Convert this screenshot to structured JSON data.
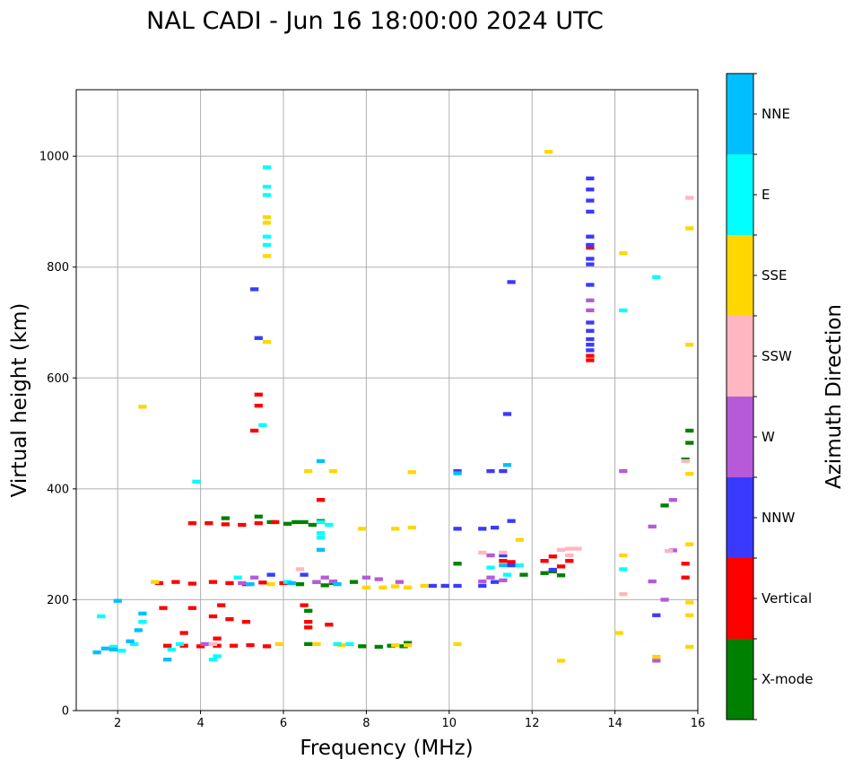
{
  "chart_data": {
    "type": "scatter",
    "title": "NAL CADI - Jun 16 18:00:00 2024 UTC",
    "xlabel": "Frequency (MHz)",
    "ylabel": "Virtual height (km)",
    "xlim": [
      1,
      16
    ],
    "ylim": [
      0,
      1120
    ],
    "xticks": [
      2,
      4,
      6,
      8,
      10,
      12,
      14,
      16
    ],
    "yticks": [
      0,
      200,
      400,
      600,
      800,
      1000
    ],
    "grid": true,
    "colorbar": {
      "label": "Azimuth Direction",
      "categories": [
        "X-mode",
        "Vertical",
        "NNW",
        "W",
        "SSW",
        "SSE",
        "E",
        "NNE"
      ],
      "colors": [
        "#008000",
        "#ff0000",
        "#3a3aff",
        "#b65ad9",
        "#ffb6c1",
        "#ffd700",
        "#00ffff",
        "#00bfff"
      ]
    },
    "echo_width_mhz": 0.2,
    "echo_height_km": 7,
    "series": [
      {
        "name": "X-mode",
        "points": [
          [
            6.3,
            340
          ],
          [
            6.5,
            340
          ],
          [
            6.7,
            335
          ],
          [
            6.9,
            342
          ],
          [
            5.7,
            340
          ],
          [
            6.1,
            337
          ],
          [
            6.8,
            232
          ],
          [
            7.0,
            226
          ],
          [
            7.2,
            230
          ],
          [
            6.4,
            228
          ],
          [
            7.9,
            116
          ],
          [
            8.3,
            115
          ],
          [
            8.6,
            117
          ],
          [
            8.9,
            116
          ],
          [
            9.0,
            122
          ],
          [
            6.6,
            120
          ],
          [
            6.6,
            180
          ],
          [
            12.3,
            248
          ],
          [
            12.5,
            251
          ],
          [
            12.7,
            244
          ],
          [
            11.8,
            245
          ],
          [
            10.2,
            265
          ],
          [
            15.8,
            483
          ],
          [
            15.8,
            505
          ],
          [
            15.7,
            453
          ],
          [
            15.2,
            370
          ],
          [
            4.6,
            347
          ],
          [
            5.4,
            350
          ],
          [
            7.7,
            232
          ]
        ]
      },
      {
        "name": "Vertical",
        "points": [
          [
            3.0,
            230
          ],
          [
            3.4,
            232
          ],
          [
            3.8,
            229
          ],
          [
            4.3,
            232
          ],
          [
            4.7,
            230
          ],
          [
            5.1,
            228
          ],
          [
            5.5,
            231
          ],
          [
            6.0,
            230
          ],
          [
            3.2,
            117
          ],
          [
            3.6,
            117
          ],
          [
            4.0,
            116
          ],
          [
            4.4,
            117
          ],
          [
            4.8,
            117
          ],
          [
            5.2,
            118
          ],
          [
            5.6,
            116
          ],
          [
            3.1,
            185
          ],
          [
            3.8,
            185
          ],
          [
            4.3,
            170
          ],
          [
            4.7,
            165
          ],
          [
            5.1,
            160
          ],
          [
            4.5,
            190
          ],
          [
            3.6,
            140
          ],
          [
            4.4,
            130
          ],
          [
            6.5,
            190
          ],
          [
            6.6,
            150
          ],
          [
            6.6,
            160
          ],
          [
            7.1,
            155
          ],
          [
            3.8,
            338
          ],
          [
            4.2,
            338
          ],
          [
            4.6,
            336
          ],
          [
            5.0,
            335
          ],
          [
            5.4,
            338
          ],
          [
            5.8,
            340
          ],
          [
            6.9,
            380
          ],
          [
            5.4,
            570
          ],
          [
            5.4,
            550
          ],
          [
            5.3,
            505
          ],
          [
            13.4,
            632
          ],
          [
            13.4,
            640
          ],
          [
            13.4,
            835
          ],
          [
            12.9,
            270
          ],
          [
            12.7,
            260
          ],
          [
            12.5,
            278
          ],
          [
            12.3,
            270
          ],
          [
            11.5,
            268
          ],
          [
            15.7,
            265
          ],
          [
            15.7,
            240
          ],
          [
            11.3,
            270
          ]
        ]
      },
      {
        "name": "NNW",
        "points": [
          [
            5.3,
            760
          ],
          [
            5.4,
            672
          ],
          [
            13.4,
            960
          ],
          [
            13.4,
            940
          ],
          [
            13.4,
            920
          ],
          [
            13.4,
            900
          ],
          [
            13.4,
            855
          ],
          [
            13.4,
            840
          ],
          [
            13.4,
            815
          ],
          [
            13.4,
            805
          ],
          [
            13.4,
            768
          ],
          [
            13.4,
            700
          ],
          [
            13.4,
            685
          ],
          [
            13.4,
            670
          ],
          [
            13.4,
            660
          ],
          [
            13.4,
            650
          ],
          [
            11.3,
            432
          ],
          [
            11.0,
            432
          ],
          [
            10.2,
            432
          ],
          [
            11.4,
            535
          ],
          [
            11.5,
            773
          ],
          [
            10.2,
            328
          ],
          [
            10.8,
            328
          ],
          [
            11.1,
            330
          ],
          [
            11.5,
            342
          ],
          [
            9.6,
            225
          ],
          [
            9.9,
            225
          ],
          [
            10.2,
            225
          ],
          [
            10.8,
            225
          ],
          [
            11.1,
            232
          ],
          [
            11.5,
            262
          ],
          [
            11.3,
            280
          ],
          [
            12.5,
            254
          ],
          [
            15.0,
            172
          ],
          [
            5.7,
            245
          ],
          [
            6.5,
            245
          ]
        ]
      },
      {
        "name": "W",
        "points": [
          [
            8.8,
            232
          ],
          [
            8.3,
            237
          ],
          [
            8.0,
            240
          ],
          [
            13.4,
            740
          ],
          [
            13.4,
            722
          ],
          [
            14.2,
            432
          ],
          [
            14.9,
            332
          ],
          [
            15.4,
            380
          ],
          [
            15.4,
            289
          ],
          [
            15.2,
            200
          ],
          [
            14.9,
            233
          ],
          [
            15.0,
            90
          ],
          [
            11.3,
            235
          ],
          [
            11.0,
            240
          ],
          [
            10.8,
            233
          ],
          [
            11.0,
            280
          ],
          [
            7.2,
            233
          ],
          [
            7.0,
            240
          ],
          [
            6.8,
            232
          ],
          [
            5.0,
            230
          ],
          [
            5.3,
            240
          ],
          [
            4.1,
            120
          ]
        ]
      },
      {
        "name": "SSW",
        "points": [
          [
            12.9,
            292
          ],
          [
            13.1,
            292
          ],
          [
            12.7,
            290
          ],
          [
            12.9,
            280
          ],
          [
            15.8,
            925
          ],
          [
            15.7,
            450
          ],
          [
            15.3,
            288
          ],
          [
            14.2,
            210
          ],
          [
            11.3,
            285
          ],
          [
            10.8,
            285
          ],
          [
            4.3,
            120
          ],
          [
            6.4,
            255
          ]
        ]
      },
      {
        "name": "SSE",
        "points": [
          [
            8.0,
            222
          ],
          [
            8.4,
            222
          ],
          [
            8.7,
            224
          ],
          [
            9.0,
            222
          ],
          [
            9.4,
            225
          ],
          [
            5.6,
            880
          ],
          [
            5.6,
            890
          ],
          [
            5.6,
            820
          ],
          [
            5.6,
            665
          ],
          [
            2.6,
            548
          ],
          [
            6.6,
            432
          ],
          [
            7.2,
            432
          ],
          [
            9.1,
            430
          ],
          [
            8.7,
            328
          ],
          [
            9.1,
            330
          ],
          [
            7.9,
            328
          ],
          [
            12.4,
            1008
          ],
          [
            14.2,
            825
          ],
          [
            15.8,
            870
          ],
          [
            15.8,
            660
          ],
          [
            15.8,
            427
          ],
          [
            15.8,
            300
          ],
          [
            15.8,
            195
          ],
          [
            15.8,
            172
          ],
          [
            15.8,
            115
          ],
          [
            14.2,
            280
          ],
          [
            14.1,
            140
          ],
          [
            15.0,
            97
          ],
          [
            12.7,
            90
          ],
          [
            11.7,
            308
          ],
          [
            6.8,
            120
          ],
          [
            7.4,
            118
          ],
          [
            8.7,
            118
          ],
          [
            9.0,
            118
          ],
          [
            2.9,
            232
          ],
          [
            5.9,
            120
          ],
          [
            5.7,
            228
          ],
          [
            10.2,
            120
          ]
        ]
      },
      {
        "name": "E",
        "points": [
          [
            5.6,
            980
          ],
          [
            5.6,
            945
          ],
          [
            5.6,
            930
          ],
          [
            5.6,
            855
          ],
          [
            5.6,
            840
          ],
          [
            5.5,
            515
          ],
          [
            6.9,
            340
          ],
          [
            7.1,
            335
          ],
          [
            6.9,
            320
          ],
          [
            6.9,
            312
          ],
          [
            14.2,
            722
          ],
          [
            15.0,
            782
          ],
          [
            14.2,
            255
          ],
          [
            11.4,
            245
          ],
          [
            11.7,
            262
          ],
          [
            11.0,
            258
          ],
          [
            7.3,
            120
          ],
          [
            7.6,
            120
          ],
          [
            4.4,
            98
          ],
          [
            4.3,
            92
          ],
          [
            1.6,
            170
          ],
          [
            1.9,
            115
          ],
          [
            2.1,
            108
          ],
          [
            2.4,
            120
          ],
          [
            2.6,
            160
          ],
          [
            3.5,
            120
          ],
          [
            3.3,
            110
          ],
          [
            6.1,
            232
          ],
          [
            4.9,
            240
          ],
          [
            3.9,
            413
          ]
        ]
      },
      {
        "name": "NNE",
        "points": [
          [
            6.9,
            450
          ],
          [
            11.4,
            443
          ],
          [
            1.5,
            105
          ],
          [
            1.7,
            112
          ],
          [
            1.9,
            110
          ],
          [
            2.0,
            198
          ],
          [
            2.3,
            125
          ],
          [
            2.5,
            145
          ],
          [
            2.6,
            175
          ],
          [
            3.2,
            92
          ],
          [
            5.2,
            228
          ],
          [
            6.2,
            230
          ],
          [
            7.3,
            228
          ],
          [
            6.9,
            290
          ],
          [
            11.3,
            262
          ],
          [
            10.2,
            428
          ]
        ]
      }
    ]
  }
}
